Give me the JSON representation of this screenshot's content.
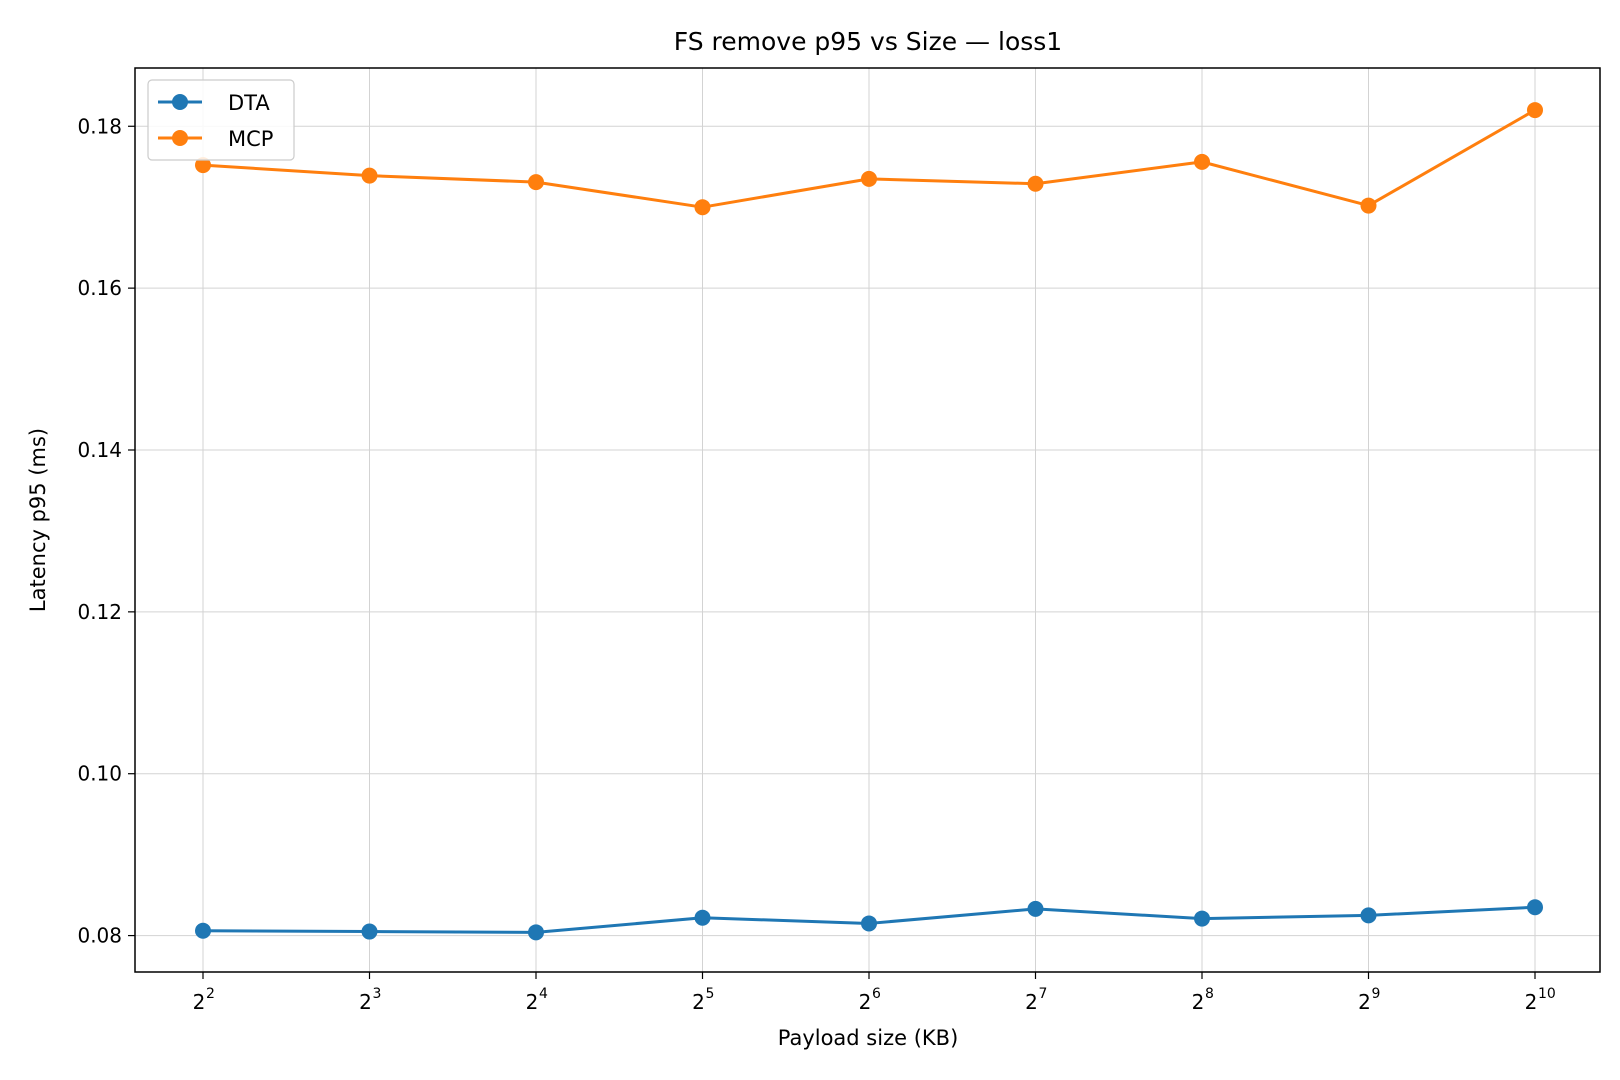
{
  "chart_data": {
    "type": "line",
    "title": "FS remove p95 vs Size — loss1",
    "xlabel": "Payload size (KB)",
    "ylabel": "Latency p95 (ms)",
    "x_scale": "log2",
    "x": [
      4,
      8,
      16,
      32,
      64,
      128,
      256,
      512,
      1024
    ],
    "x_tick_labels": [
      {
        "base": "2",
        "exp": "2"
      },
      {
        "base": "2",
        "exp": "3"
      },
      {
        "base": "2",
        "exp": "4"
      },
      {
        "base": "2",
        "exp": "5"
      },
      {
        "base": "2",
        "exp": "6"
      },
      {
        "base": "2",
        "exp": "7"
      },
      {
        "base": "2",
        "exp": "8"
      },
      {
        "base": "2",
        "exp": "9"
      },
      {
        "base": "2",
        "exp": "10"
      }
    ],
    "y_ticks": [
      0.08,
      0.1,
      0.12,
      0.14,
      0.16,
      0.18
    ],
    "y_tick_labels": [
      "0.08",
      "0.10",
      "0.12",
      "0.14",
      "0.16",
      "0.18"
    ],
    "ylim": [
      0.0755,
      0.1872
    ],
    "grid": true,
    "legend_position": "top-left",
    "series": [
      {
        "name": "DTA",
        "color": "#1f77b4",
        "values": [
          0.0806,
          0.0805,
          0.0804,
          0.0822,
          0.0815,
          0.0833,
          0.0821,
          0.0825,
          0.0835
        ]
      },
      {
        "name": "MCP",
        "color": "#ff7f0e",
        "values": [
          0.1752,
          0.1739,
          0.1731,
          0.17,
          0.1735,
          0.1729,
          0.1756,
          0.1702,
          0.182
        ]
      }
    ]
  }
}
